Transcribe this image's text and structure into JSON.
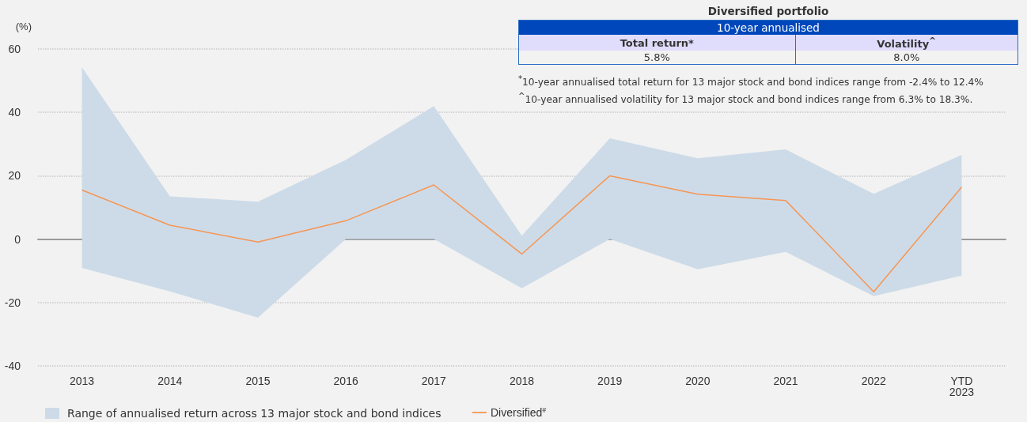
{
  "chart_data": [
    {
      "type": "line",
      "ylabel": "(%)",
      "categories": [
        "2013",
        "2014",
        "2015",
        "2016",
        "2017",
        "2018",
        "2019",
        "2020",
        "2021",
        "2022",
        "YTD\n2023"
      ],
      "series": [
        {
          "name": "Diversified$^{#}$",
          "color": "#f79552",
          "values": [
            15.5,
            4.4,
            -0.9,
            5.8,
            17.1,
            -4.7,
            20,
            14.2,
            12.2,
            -16.6,
            16.4
          ],
          "lower": [
            -9.1,
            -16.5,
            -24.8,
            0,
            0,
            -15.5,
            0,
            -9.5,
            -4,
            -18,
            -11.5
          ],
          "upper": [
            54.2,
            13.5,
            11.8,
            25,
            42,
            1.1,
            31.8,
            25.5,
            28.3,
            14.3,
            26.6
          ]
        }
      ],
      "annotations": [
        "Range of annualised return across 13 major stock and bond indices"
      ],
      "ylim": [
        -40,
        60
      ],
      "yticks": [
        -40,
        -20,
        0,
        20,
        40,
        60
      ],
      "grid": "y",
      "legend": "bottom left",
      "marker": "none"
    },
    {
      "type": "other",
      "title": "Diversified portfolio",
      "subtitle": "10-year annualised",
      "categories": [
        "Total return*",
        "Volatility$^{^}$"
      ],
      "value_labels": [
        "5.8%",
        "8.0%"
      ],
      "annotations": [
        "$^{*}$10-year annualised total return for 13 major stock and bond indices range from -2.4% to 12.4%",
        "$^{^}$10-year annualised volatility for 13 major stock and bond indices range from 6.3% to 18.3%."
      ]
    }
  ]
}
